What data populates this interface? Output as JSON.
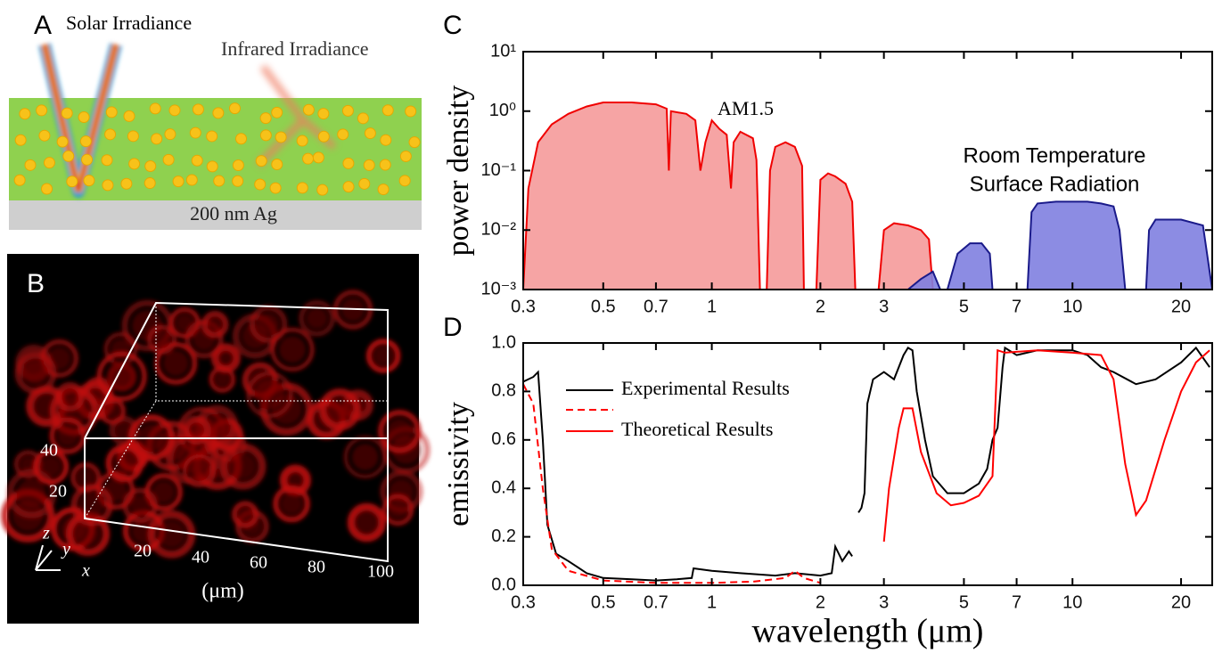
{
  "panel_a": {
    "label": "A",
    "solar": "Solar Irradiance",
    "infrared": "Infrared Irradiance",
    "substrate": "200 nm Ag"
  },
  "panel_b": {
    "label": "B",
    "y_ticks": [
      "40",
      "20"
    ],
    "x_ticks": [
      "20",
      "40",
      "60",
      "80",
      "100"
    ],
    "unit": "(μm)",
    "axes": [
      "z",
      "y",
      "x"
    ]
  },
  "chart_data": [
    {
      "type": "area",
      "panel_label": "C",
      "ylabel": "power density",
      "log_x": true,
      "log_y": true,
      "xlim": [
        0.3,
        24.4
      ],
      "ylim": [
        0.001,
        10
      ],
      "xticks": [
        0.3,
        0.5,
        0.7,
        1,
        2,
        3,
        5,
        7,
        10,
        20
      ],
      "yticks": [
        {
          "value": 10,
          "label": "10¹"
        },
        {
          "value": 1,
          "label": "10⁰"
        },
        {
          "value": 0.1,
          "label": "10⁻¹"
        },
        {
          "value": 0.01,
          "label": "10⁻²"
        },
        {
          "value": 0.001,
          "label": "10⁻³"
        }
      ],
      "annotations": [
        "AM1.5",
        "Room Temperature",
        "Surface Radiation"
      ],
      "series": [
        {
          "color": "#f00000",
          "fill": "#f59a9a",
          "x": [
            0.3,
            0.31,
            0.33,
            0.36,
            0.4,
            0.45,
            0.5,
            0.6,
            0.7,
            0.75,
            0.76,
            0.77,
            0.85,
            0.9,
            0.93,
            0.96,
            1.0,
            1.05,
            1.1,
            1.13,
            1.15,
            1.2,
            1.3,
            1.33,
            1.36,
            null,
            1.42,
            1.45,
            1.5,
            1.6,
            1.7,
            1.78,
            1.8,
            null,
            1.95,
            2.0,
            2.1,
            2.2,
            2.35,
            2.45,
            2.5,
            null,
            2.9,
            3.0,
            3.2,
            3.5,
            3.8,
            4.0,
            4.1
          ],
          "values": [
            0.001,
            0.05,
            0.3,
            0.6,
            0.9,
            1.2,
            1.4,
            1.4,
            1.3,
            1.1,
            0.1,
            1.0,
            0.9,
            0.7,
            0.1,
            0.3,
            0.7,
            0.5,
            0.4,
            0.05,
            0.3,
            0.45,
            0.35,
            0.15,
            0.001,
            null,
            0.001,
            0.1,
            0.25,
            0.3,
            0.25,
            0.12,
            0.001,
            null,
            0.001,
            0.07,
            0.09,
            0.08,
            0.06,
            0.03,
            0.001,
            null,
            0.001,
            0.01,
            0.013,
            0.012,
            0.01,
            0.007,
            0.001
          ]
        },
        {
          "color": "#1a1a8a",
          "fill": "#7f7fe0",
          "x": [
            3.5,
            3.8,
            4.1,
            4.3,
            null,
            4.5,
            4.8,
            5.2,
            5.6,
            5.9,
            6.0,
            null,
            7.5,
            7.7,
            8,
            9,
            10,
            11,
            12,
            13,
            13.5,
            14,
            null,
            16,
            16.3,
            17,
            20,
            23,
            24.4
          ],
          "values": [
            0.001,
            0.0015,
            0.002,
            0.001,
            null,
            0.001,
            0.004,
            0.006,
            0.006,
            0.004,
            0.001,
            null,
            0.001,
            0.02,
            0.028,
            0.03,
            0.03,
            0.03,
            0.028,
            0.025,
            0.01,
            0.001,
            null,
            0.001,
            0.01,
            0.015,
            0.015,
            0.012,
            0.001
          ]
        }
      ]
    },
    {
      "type": "line",
      "panel_label": "D",
      "ylabel": "emissivity",
      "xlabel": "wavelength (μm)",
      "log_x": true,
      "xlim": [
        0.3,
        24.4
      ],
      "ylim": [
        0,
        1
      ],
      "xticks": [
        0.3,
        0.5,
        0.7,
        1,
        2,
        3,
        5,
        7,
        10,
        20
      ],
      "yticks": [
        {
          "value": 0,
          "label": "0.0"
        },
        0.2,
        0.4,
        0.6,
        0.8,
        {
          "value": 1,
          "label": "1.0"
        }
      ],
      "series": [
        {
          "name": "Experimental Results",
          "color": "#000000",
          "dash": false,
          "x": [
            0.3,
            0.32,
            0.33,
            0.34,
            0.35,
            0.37,
            0.4,
            0.45,
            0.5,
            0.6,
            0.7,
            0.8,
            0.88,
            0.89,
            1.0,
            1.2,
            1.5,
            1.7,
            2.0,
            2.15,
            2.2,
            2.3,
            2.4,
            2.45,
            null,
            2.55,
            2.6,
            2.65,
            2.7,
            2.8,
            3.0,
            3.2,
            3.4,
            3.5,
            3.6,
            3.7,
            3.9,
            4.1,
            4.5,
            5.0,
            5.5,
            5.8,
            6.0,
            6.2,
            6.4,
            6.5,
            7,
            8,
            10,
            11,
            12,
            13,
            15,
            17,
            20,
            22,
            24
          ],
          "values": [
            0.84,
            0.86,
            0.88,
            0.6,
            0.25,
            0.13,
            0.1,
            0.05,
            0.03,
            0.025,
            0.02,
            0.025,
            0.03,
            0.07,
            0.06,
            0.05,
            0.04,
            0.05,
            0.04,
            0.05,
            0.16,
            0.1,
            0.14,
            0.12,
            null,
            0.3,
            0.32,
            0.38,
            0.75,
            0.85,
            0.88,
            0.85,
            0.95,
            0.98,
            0.97,
            0.8,
            0.6,
            0.45,
            0.38,
            0.38,
            0.42,
            0.48,
            0.6,
            0.65,
            0.9,
            0.98,
            0.95,
            0.97,
            0.97,
            0.95,
            0.9,
            0.88,
            0.83,
            0.85,
            0.92,
            0.98,
            0.9
          ]
        },
        {
          "color": "#ff0000",
          "dash": true,
          "x": [
            0.3,
            0.32,
            0.34,
            0.36,
            0.4,
            0.5,
            0.7,
            1.0,
            1.3,
            1.6,
            1.7,
            1.8,
            2.0
          ],
          "values": [
            0.83,
            0.75,
            0.4,
            0.15,
            0.06,
            0.02,
            0.01,
            0.01,
            0.015,
            0.03,
            0.06,
            0.03,
            0.01
          ]
        },
        {
          "name": "Theoretical Results",
          "color": "#ff0000",
          "dash": false,
          "x": [
            3.0,
            3.1,
            3.3,
            3.4,
            3.6,
            3.8,
            4.2,
            4.6,
            5.0,
            5.5,
            6.0,
            6.2,
            6.5,
            8,
            10,
            12,
            13,
            14,
            15,
            16,
            18,
            20,
            22,
            24
          ],
          "values": [
            0.18,
            0.4,
            0.65,
            0.73,
            0.73,
            0.55,
            0.38,
            0.33,
            0.34,
            0.37,
            0.45,
            0.97,
            0.96,
            0.97,
            0.96,
            0.95,
            0.85,
            0.5,
            0.29,
            0.35,
            0.6,
            0.8,
            0.92,
            0.97
          ]
        }
      ]
    }
  ]
}
